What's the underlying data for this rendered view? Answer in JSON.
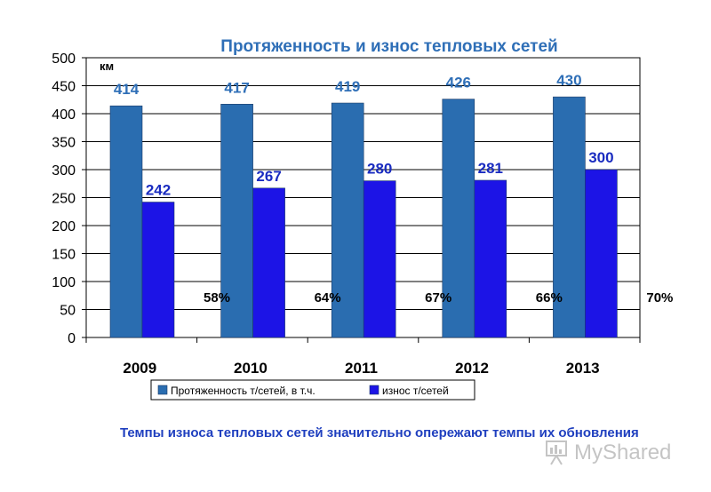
{
  "chart_data": {
    "type": "bar",
    "title": "Протяженность и износ тепловых сетей",
    "unit_label": "км",
    "categories": [
      "2009",
      "2010",
      "2011",
      "2012",
      "2013"
    ],
    "series": [
      {
        "name": "Протяженность т/сетей, в т.ч.",
        "values": [
          414,
          417,
          419,
          426,
          430
        ],
        "color": "#2a6db0",
        "label_color": "#2f6fb7"
      },
      {
        "name": "износ т/сетей",
        "values": [
          242,
          267,
          280,
          281,
          300
        ],
        "color": "#1c14e6",
        "label_color": "#1a2cc0"
      }
    ],
    "percent_labels": [
      "58%",
      "64%",
      "67%",
      "66%",
      "70%"
    ],
    "ylim": [
      0,
      500
    ],
    "yticks": [
      0,
      50,
      100,
      150,
      200,
      250,
      300,
      350,
      400,
      450,
      500
    ],
    "grid": true,
    "legend_position": "bottom"
  },
  "footer_text": "Темпы износа тепловых сетей значительно опережают темпы их обновления",
  "watermark": {
    "text": "MyShared"
  }
}
